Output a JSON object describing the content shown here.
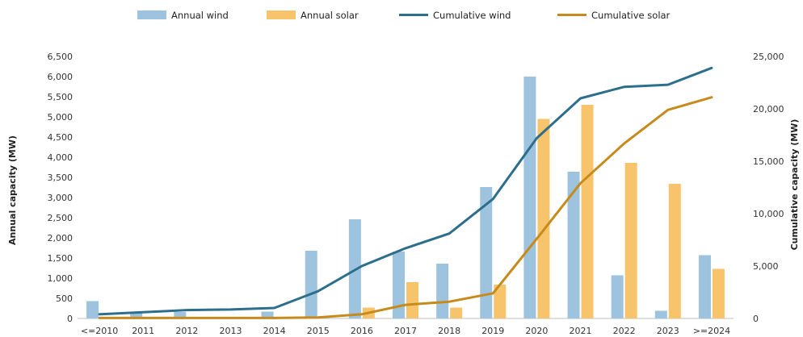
{
  "chart_data": {
    "type": "bar",
    "categories": [
      "<=2010",
      "2011",
      "2012",
      "2013",
      "2014",
      "2015",
      "2016",
      "2017",
      "2018",
      "2019",
      "2020",
      "2021",
      "2022",
      "2023",
      ">=2024"
    ],
    "series": [
      {
        "name": "Annual wind",
        "kind": "bar",
        "axis": "left",
        "color": "#9dc3de",
        "values": [
          430,
          130,
          160,
          0,
          170,
          1680,
          2460,
          1660,
          1360,
          3260,
          6000,
          3640,
          1070,
          190,
          1570
        ]
      },
      {
        "name": "Annual solar",
        "kind": "bar",
        "axis": "left",
        "color": "#f7c46c",
        "values": [
          0,
          0,
          0,
          0,
          0,
          0,
          270,
          900,
          270,
          840,
          4950,
          5300,
          3860,
          3340,
          1230
        ]
      },
      {
        "name": "Cumulative wind",
        "kind": "line",
        "axis": "right",
        "color": "#2c6e8c",
        "values": [
          400,
          600,
          800,
          850,
          1000,
          2600,
          5000,
          6700,
          8100,
          11400,
          17200,
          21000,
          22100,
          22300,
          23900
        ]
      },
      {
        "name": "Cumulative solar",
        "kind": "line",
        "axis": "right",
        "color": "#c78a1c",
        "values": [
          50,
          50,
          50,
          50,
          50,
          100,
          400,
          1300,
          1600,
          2400,
          7600,
          12900,
          16700,
          19900,
          21100
        ]
      }
    ],
    "ylabel": "Annual capacity (MW)",
    "y2label": "Cumulative capacity (MW)",
    "ylim": [
      0,
      6500
    ],
    "yticks": [
      0,
      500,
      1000,
      1500,
      2000,
      2500,
      3000,
      3500,
      4000,
      4500,
      5000,
      5500,
      6000,
      6500
    ],
    "ytick_labels": [
      "0",
      "500",
      "1,000",
      "1,500",
      "2,000",
      "2,500",
      "3,000",
      "3,500",
      "4,000",
      "4,500",
      "5,000",
      "5,500",
      "6,000",
      "6,500"
    ],
    "y2lim": [
      0,
      25000
    ],
    "y2ticks": [
      0,
      5000,
      10000,
      15000,
      20000,
      25000
    ],
    "y2tick_labels": [
      "0",
      "5,000",
      "10,000",
      "15,000",
      "20,000",
      "25,000"
    ],
    "legend_position": "top",
    "grid": false
  }
}
